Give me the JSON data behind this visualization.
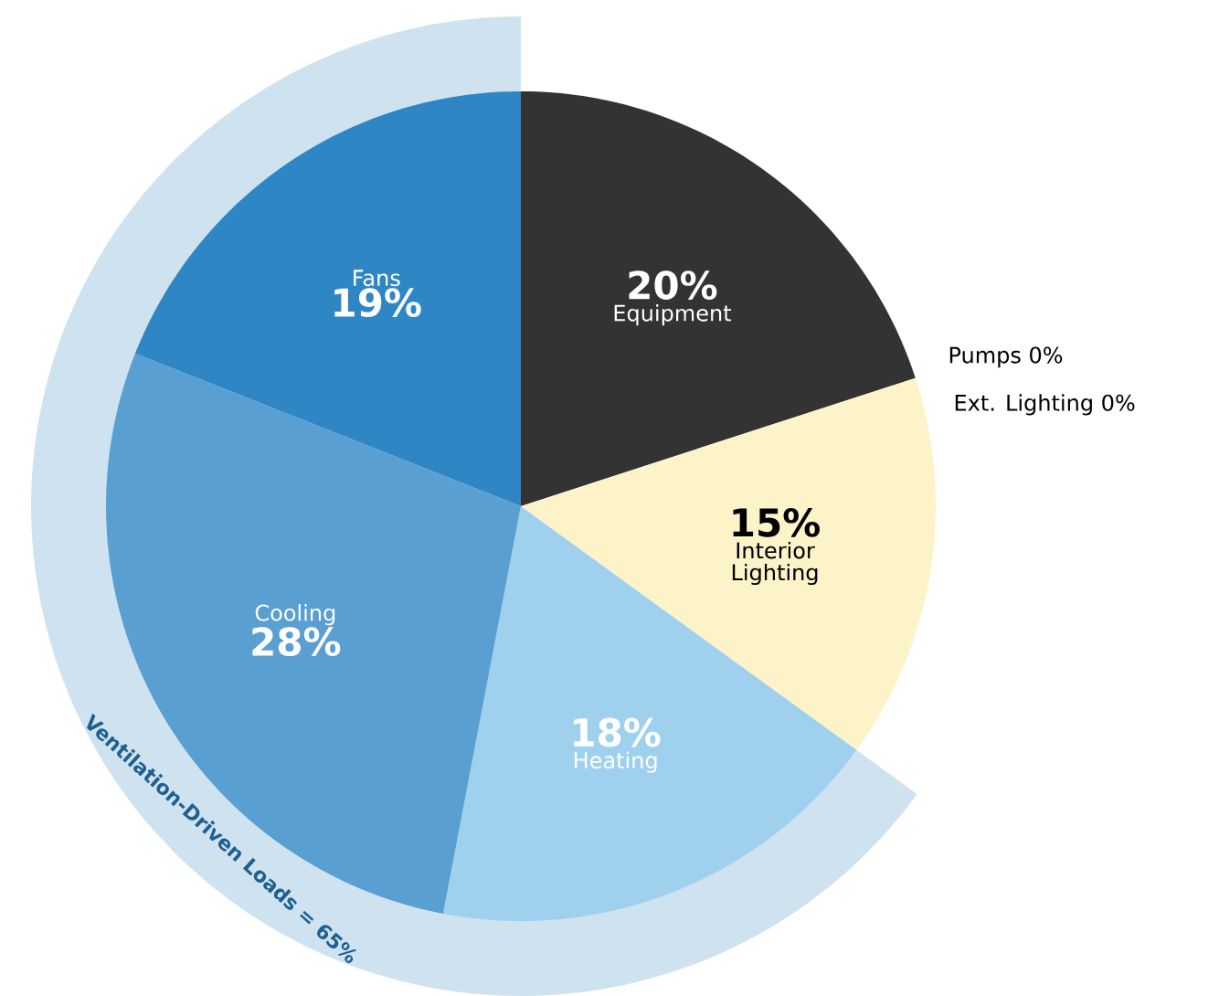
{
  "chart_data": {
    "type": "pie",
    "categories": [
      "Equipment",
      "Pumps",
      "Ext. Lighting",
      "Interior Lighting",
      "Heating",
      "Cooling",
      "Fans"
    ],
    "values": [
      20,
      0,
      0,
      15,
      18,
      28,
      19
    ],
    "value_labels": [
      "20%",
      "0%",
      "0%",
      "15%",
      "18%",
      "28%",
      "19%"
    ],
    "colors": [
      "#333333",
      null,
      null,
      "#fdf3c9",
      "#9fd0ee",
      "#5a9fd1",
      "#2e86c4"
    ],
    "annotations": [
      "Ventilation-Driven Loads = 65%"
    ]
  }
}
